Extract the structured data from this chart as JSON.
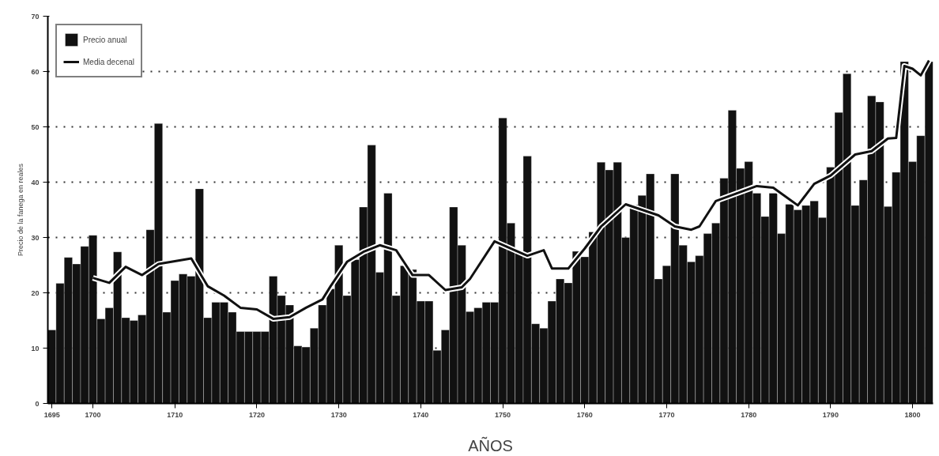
{
  "chart_data": {
    "type": "bar",
    "xlabel": "AÑOS",
    "ylabel": "Precio de la fanega en reales",
    "x": [
      1695,
      1696,
      1697,
      1698,
      1699,
      1700,
      1701,
      1702,
      1703,
      1704,
      1705,
      1706,
      1707,
      1708,
      1709,
      1710,
      1711,
      1712,
      1713,
      1714,
      1715,
      1716,
      1717,
      1718,
      1719,
      1720,
      1721,
      1722,
      1723,
      1724,
      1725,
      1726,
      1727,
      1728,
      1729,
      1730,
      1731,
      1732,
      1733,
      1734,
      1735,
      1736,
      1737,
      1738,
      1739,
      1740,
      1741,
      1742,
      1743,
      1744,
      1745,
      1746,
      1747,
      1748,
      1749,
      1750,
      1751,
      1752,
      1753,
      1754,
      1755,
      1756,
      1757,
      1758,
      1759,
      1760,
      1761,
      1762,
      1763,
      1764,
      1765,
      1766,
      1767,
      1768,
      1769,
      1770,
      1771,
      1772,
      1773,
      1774,
      1775,
      1776,
      1777,
      1778,
      1779,
      1780,
      1781,
      1782,
      1783,
      1784,
      1785,
      1786,
      1787,
      1788,
      1789,
      1790,
      1791,
      1792,
      1793,
      1794,
      1795,
      1796,
      1797,
      1798,
      1799,
      1800,
      1801,
      1802
    ],
    "series": [
      {
        "name": "Precio anual",
        "color": "#111111",
        "values": [
          13.3,
          21.7,
          26.4,
          25.2,
          28.4,
          30.4,
          15.3,
          17.3,
          27.4,
          15.5,
          15,
          16,
          31.4,
          50.6,
          16.5,
          22.2,
          23.4,
          23,
          38.8,
          15.5,
          18.3,
          18.3,
          16.5,
          13,
          13,
          13,
          13,
          23,
          19.5,
          17.8,
          10.4,
          10.2,
          13.6,
          17.8,
          20.7,
          28.6,
          19.5,
          26,
          35.5,
          46.7,
          23.7,
          38,
          19.5,
          24.9,
          24.2,
          18.5,
          18.5,
          9.6,
          13.3,
          35.5,
          28.6,
          16.6,
          17.3,
          18.3,
          18.3,
          51.6,
          32.6,
          27.4,
          44.7,
          14.4,
          13.6,
          18.5,
          22.5,
          21.8,
          27.5,
          26.5,
          31,
          43.6,
          42.2,
          43.6,
          30,
          35.9,
          37.6,
          41.5,
          22.5,
          24.9,
          41.5,
          28.6,
          25.6,
          26.7,
          30.7,
          32.6,
          40.7,
          53,
          42.5,
          43.7,
          38,
          33.8,
          38,
          30.7,
          36,
          35,
          35.8,
          36.6,
          33.6,
          42.7,
          52.6,
          59.6,
          35.8,
          40.4,
          55.6,
          54.5,
          35.6,
          41.8,
          61.8,
          43.7,
          48.4,
          61.8
        ]
      },
      {
        "name": "Media decenal",
        "type": "line",
        "color": "#111111",
        "x": [
          1700,
          1702,
          1704,
          1706,
          1708,
          1712,
          1714,
          1716,
          1718,
          1720,
          1722,
          1724,
          1726,
          1728,
          1729,
          1731,
          1733,
          1735,
          1737,
          1739,
          1741,
          1743,
          1745,
          1746,
          1749,
          1753,
          1755,
          1756,
          1758,
          1760,
          1762,
          1765,
          1769,
          1771,
          1773,
          1774,
          1776,
          1781,
          1783,
          1786,
          1788,
          1790,
          1793,
          1795,
          1797,
          1798,
          1799,
          1800,
          1801,
          1802
        ],
        "values": [
          22.7,
          21.8,
          24.7,
          23.2,
          25.2,
          26.2,
          21.2,
          19.5,
          17.3,
          17,
          15.3,
          15.6,
          17.3,
          18.8,
          21.2,
          25.6,
          27.4,
          28.6,
          27.7,
          23.2,
          23.2,
          20.5,
          21,
          22.5,
          29.3,
          26.7,
          27.7,
          24.4,
          24.4,
          28,
          32,
          36,
          34,
          32,
          31.4,
          32,
          36.6,
          39.3,
          39,
          35.8,
          39.7,
          41.2,
          45,
          45.6,
          47.9,
          48,
          61,
          60.5,
          59.3,
          62
        ]
      }
    ],
    "xlim": [
      1694.5,
      1802.5
    ],
    "xticks": [
      1695,
      1700,
      1710,
      1720,
      1730,
      1740,
      1750,
      1760,
      1770,
      1780,
      1790,
      1800
    ],
    "ylim": [
      0,
      70
    ],
    "yticks": [
      0,
      10,
      20,
      30,
      40,
      50,
      60,
      70
    ],
    "grid": "y",
    "legend": "top left",
    "line_style": "solid"
  }
}
